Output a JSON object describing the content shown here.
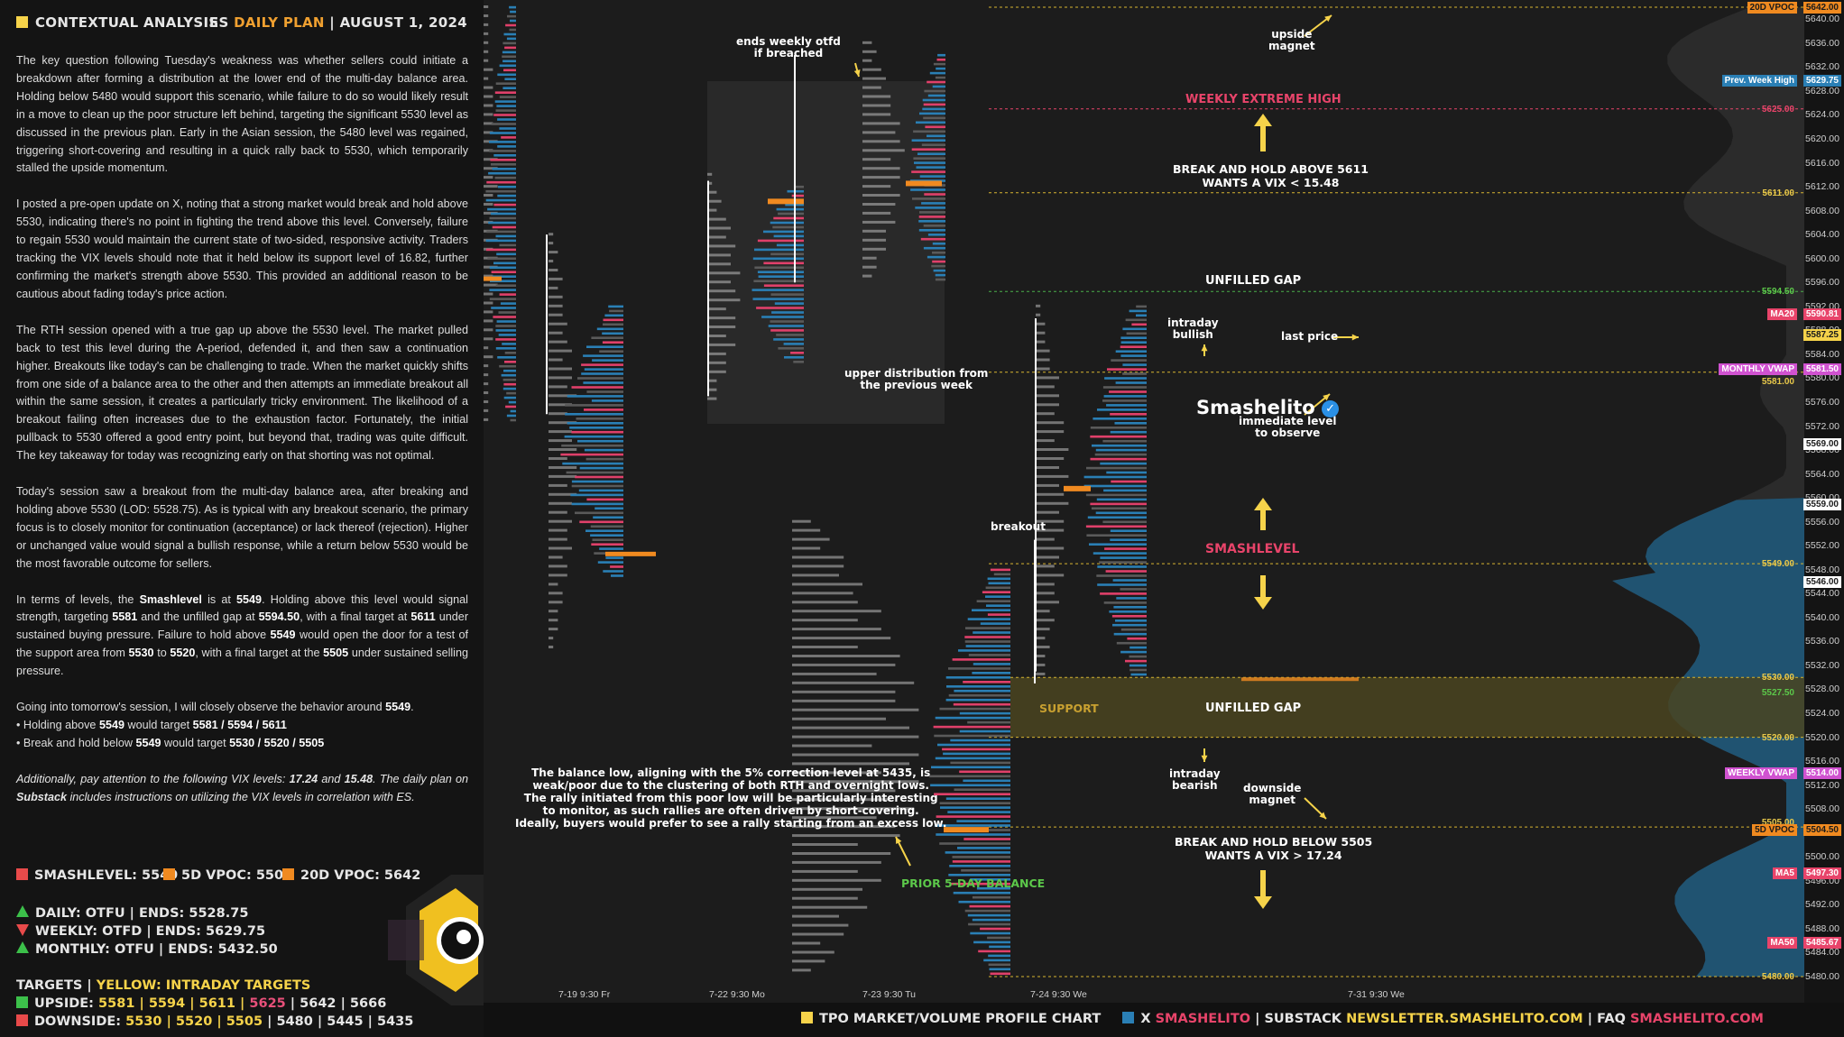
{
  "header": {
    "title": "CONTEXTUAL ANALYSIS",
    "instrument": "ES",
    "plan_type": "DAILY PLAN",
    "date": "AUGUST 1, 2024"
  },
  "article": {
    "p1": "The key question following Tuesday's weakness was whether sellers could initiate a breakdown after forming a distribution at the lower end of the multi-day balance area. Holding below 5480 would support this scenario, while failure to do so would likely result in a move to clean up the poor structure left behind, targeting the significant 5530 level as discussed in the previous plan. Early in the Asian session, the 5480 level was regained, triggering short-covering and resulting in a quick rally back to 5530, which temporarily stalled the upside momentum.",
    "p2": "I posted a pre-open update on X, noting that a strong market would break and hold above 5530, indicating there's no point in fighting the trend above this level. Conversely, failure to regain 5530 would maintain the current state of two-sided, responsive activity. Traders tracking the VIX levels should note that it held below its support level of 16.82, further confirming the market's strength above 5530. This provided an additional reason to be cautious about fading today's price action.",
    "p3": "The RTH session opened with a true gap up above the 5530 level. The market pulled back to test this level during the A-period, defended it, and then saw a continuation higher. Breakouts like today's can be challenging to trade. When the market quickly shifts from one side of a balance area to the other and then attempts an immediate breakout all within the same session, it creates a particularly tricky environment. The likelihood of a breakout failing often increases due to the exhaustion factor. Fortunately, the initial pullback to 5530 offered a good entry point, but beyond that, trading was quite difficult. The key takeaway for today was recognizing early on that shorting was not optimal.",
    "p4": "Today's session saw a breakout from the multi-day balance area, after breaking and holding above 5530 (LOD: 5528.75). As is typical with any breakout scenario, the primary focus is to closely monitor for continuation (acceptance) or lack thereof (rejection). Higher or unchanged value would signal a bullish response, while a return below 5530 would be the most favorable outcome for sellers.",
    "p5_a": "In terms of levels, the ",
    "p5_b": "Smashlevel",
    "p5_c": " is at ",
    "p5_d": "5549",
    "p5_e": ". Holding above this level would signal strength, targeting ",
    "p5_f": "5581",
    "p5_g": " and the unfilled gap at ",
    "p5_h": "5594.50",
    "p5_i": ", with a final target at ",
    "p5_j": "5611",
    "p5_k": " under sustained buying pressure. Failure to hold above ",
    "p5_l": "5549",
    "p5_m": " would open the door for a test of the support area from ",
    "p5_n": "5530",
    "p5_o": " to ",
    "p5_p": "5520",
    "p5_q": ", with a final target at the ",
    "p5_r": "5505",
    "p5_s": " under sustained selling pressure.",
    "p6_a": "Going into tomorrow's session, I will closely observe the behavior around ",
    "p6_b": "5549",
    "p6_c": ".",
    "p6_d": "• Holding above ",
    "p6_e": "5549",
    "p6_f": " would target ",
    "p6_g": "5581 / 5594 / 5611",
    "p6_h": "• Break and hold below ",
    "p6_i": "5549",
    "p6_j": " would target ",
    "p6_k": "5530 / 5520 / 5505",
    "p7_a": "Additionally, pay attention to the following VIX levels: ",
    "p7_b": "17.24",
    "p7_c": " and ",
    "p7_d": "15.48",
    "p7_e": ". The daily plan on ",
    "p7_f": "Substack",
    "p7_g": " includes instructions on utilizing the VIX levels in correlation with ES."
  },
  "levels": {
    "smashlevel": "SMASHLEVEL: 5549",
    "vpoc5d": "5D VPOC: 5505",
    "vpoc20d": "20D VPOC: 5642",
    "colors": {
      "smash": "#e84a4a",
      "vpoc5d": "#f08a20",
      "vpoc20d": "#f08a20"
    }
  },
  "otfd": {
    "daily": "DAILY: OTFU  |  ENDS: 5528.75",
    "weekly": "WEEKLY: OTFD  |  ENDS: 5629.75",
    "monthly": "MONTHLY: OTFU  |  ENDS: 5432.50"
  },
  "targets": {
    "title": "TARGETS",
    "yellow_label": "YELLOW: INTRADAY TARGETS",
    "upside_label": "UPSIDE:",
    "up1": "5581",
    "up2": "5594",
    "up3": "5611",
    "up4": "5625",
    "up5": "5642",
    "up6": "5666",
    "downside_label": "DOWNSIDE:",
    "dn1": "5530",
    "dn2": "5520",
    "dn3": "5505",
    "dn4": "5480",
    "dn5": "5445",
    "dn6": "5435"
  },
  "chart": {
    "price_ticks": [
      "5640.00",
      "5636.00",
      "5632.00",
      "5628.00",
      "5624.00",
      "5620.00",
      "5616.00",
      "5612.00",
      "5608.00",
      "5604.00",
      "5600.00",
      "5596.00",
      "5592.00",
      "5588.00",
      "5584.00",
      "5580.00",
      "5576.00",
      "5572.00",
      "5568.00",
      "5564.00",
      "5560.00",
      "5556.00",
      "5552.00",
      "5548.00",
      "5544.00",
      "5540.00",
      "5536.00",
      "5532.00",
      "5528.00",
      "5524.00",
      "5520.00",
      "5516.00",
      "5512.00",
      "5508.00",
      "5504.00",
      "5500.00",
      "5496.00",
      "5492.00",
      "5488.00",
      "5484.00",
      "5480.00"
    ],
    "time_labels": [
      "7-19  9:30 Fr",
      "7-22  9:30 Mo",
      "7-23  9:30 Tu",
      "7-24  9:30 We",
      "7-31  9:30 We"
    ],
    "price_labels": {
      "vpoc20d": "20D VPOC",
      "vpoc20d_val": "5642.00",
      "prev_week_high": "Prev. Week High",
      "prev_week_high_val": "5629.75",
      "l5625": "5625.00",
      "l5611": "5611.00",
      "l5594": "5594.50",
      "ma20": "MA20",
      "ma20_val": "5590.81",
      "last": "5587.25",
      "monthly_vwap": "MONTHLY VWAP",
      "monthly_vwap_val": "5581.50",
      "l5581": "5581.00",
      "l5569": "5569.00",
      "l5559": "5559.00",
      "l5549": "5549.00",
      "l5546": "5546.00",
      "l5530": "5530.00",
      "l5527": "5527.50",
      "l5520": "5520.00",
      "weekly_vwap": "WEEKLY VWAP",
      "weekly_vwap_val": "5514.00",
      "l5505": "5505.00",
      "vpoc5d": "5D VPOC",
      "vpoc5d_val": "5504.50",
      "ma5": "MA5",
      "ma5_val": "5497.30",
      "ma50": "MA50",
      "ma50_val": "5485.67",
      "l5480": "5480.00"
    },
    "annotations": {
      "ends_weekly": "ends weekly otfd\nif breached",
      "upper_dist": "upper distribution from\nthe previous week",
      "brand": "Smashelito",
      "breakout": "breakout",
      "intraday_bullish": "intraday\nbullish",
      "intraday_bearish": "intraday\nbearish",
      "upside_magnet": "upside\nmagnet",
      "weekly_extreme_high": "WEEKLY EXTREME HIGH",
      "break_hold_above": "BREAK AND HOLD ABOVE 5611\nWANTS A VIX < 15.48",
      "unfilled_gap_1": "UNFILLED GAP",
      "last_price": "last price",
      "immediate_level": "immediate level\nto observe",
      "smashlevel": "SMASHLEVEL",
      "support": "SUPPORT",
      "unfilled_gap_2": "UNFILLED GAP",
      "downside_magnet": "downside\nmagnet",
      "break_hold_below": "BREAK AND HOLD BELOW 5505\nWANTS A VIX > 17.24",
      "balance_low": "The balance low, aligning with the 5% correction level at 5435, is\nweak/poor due to the clustering of both RTH and overnight lows.\nThe rally initiated from this poor low will be particularly interesting\nto monitor, as such rallies are often driven by short-covering.\nIdeally, buyers would prefer to see a rally starting from an excess low.",
      "prior_balance": "PRIOR 5-DAY BALANCE"
    },
    "colors": {
      "background": "#1c1c1c",
      "volume_blue": "#2a7fb5",
      "volume_gray": "#5a5a5a",
      "volume_pink": "#e0406a",
      "poc_orange": "#f08a20",
      "support_band": "#4a4420",
      "lower_profile": "#1e5a7e"
    }
  },
  "footer": {
    "item1": "TPO MARKET/VOLUME PROFILE CHART",
    "x_label": "X",
    "x_handle": "SMASHELITO",
    "substack_label": "SUBSTACK",
    "substack_url": "NEWSLETTER.SMASHELITO.COM",
    "faq_label": "FAQ",
    "faq_url": "SMASHELITO.COM"
  }
}
